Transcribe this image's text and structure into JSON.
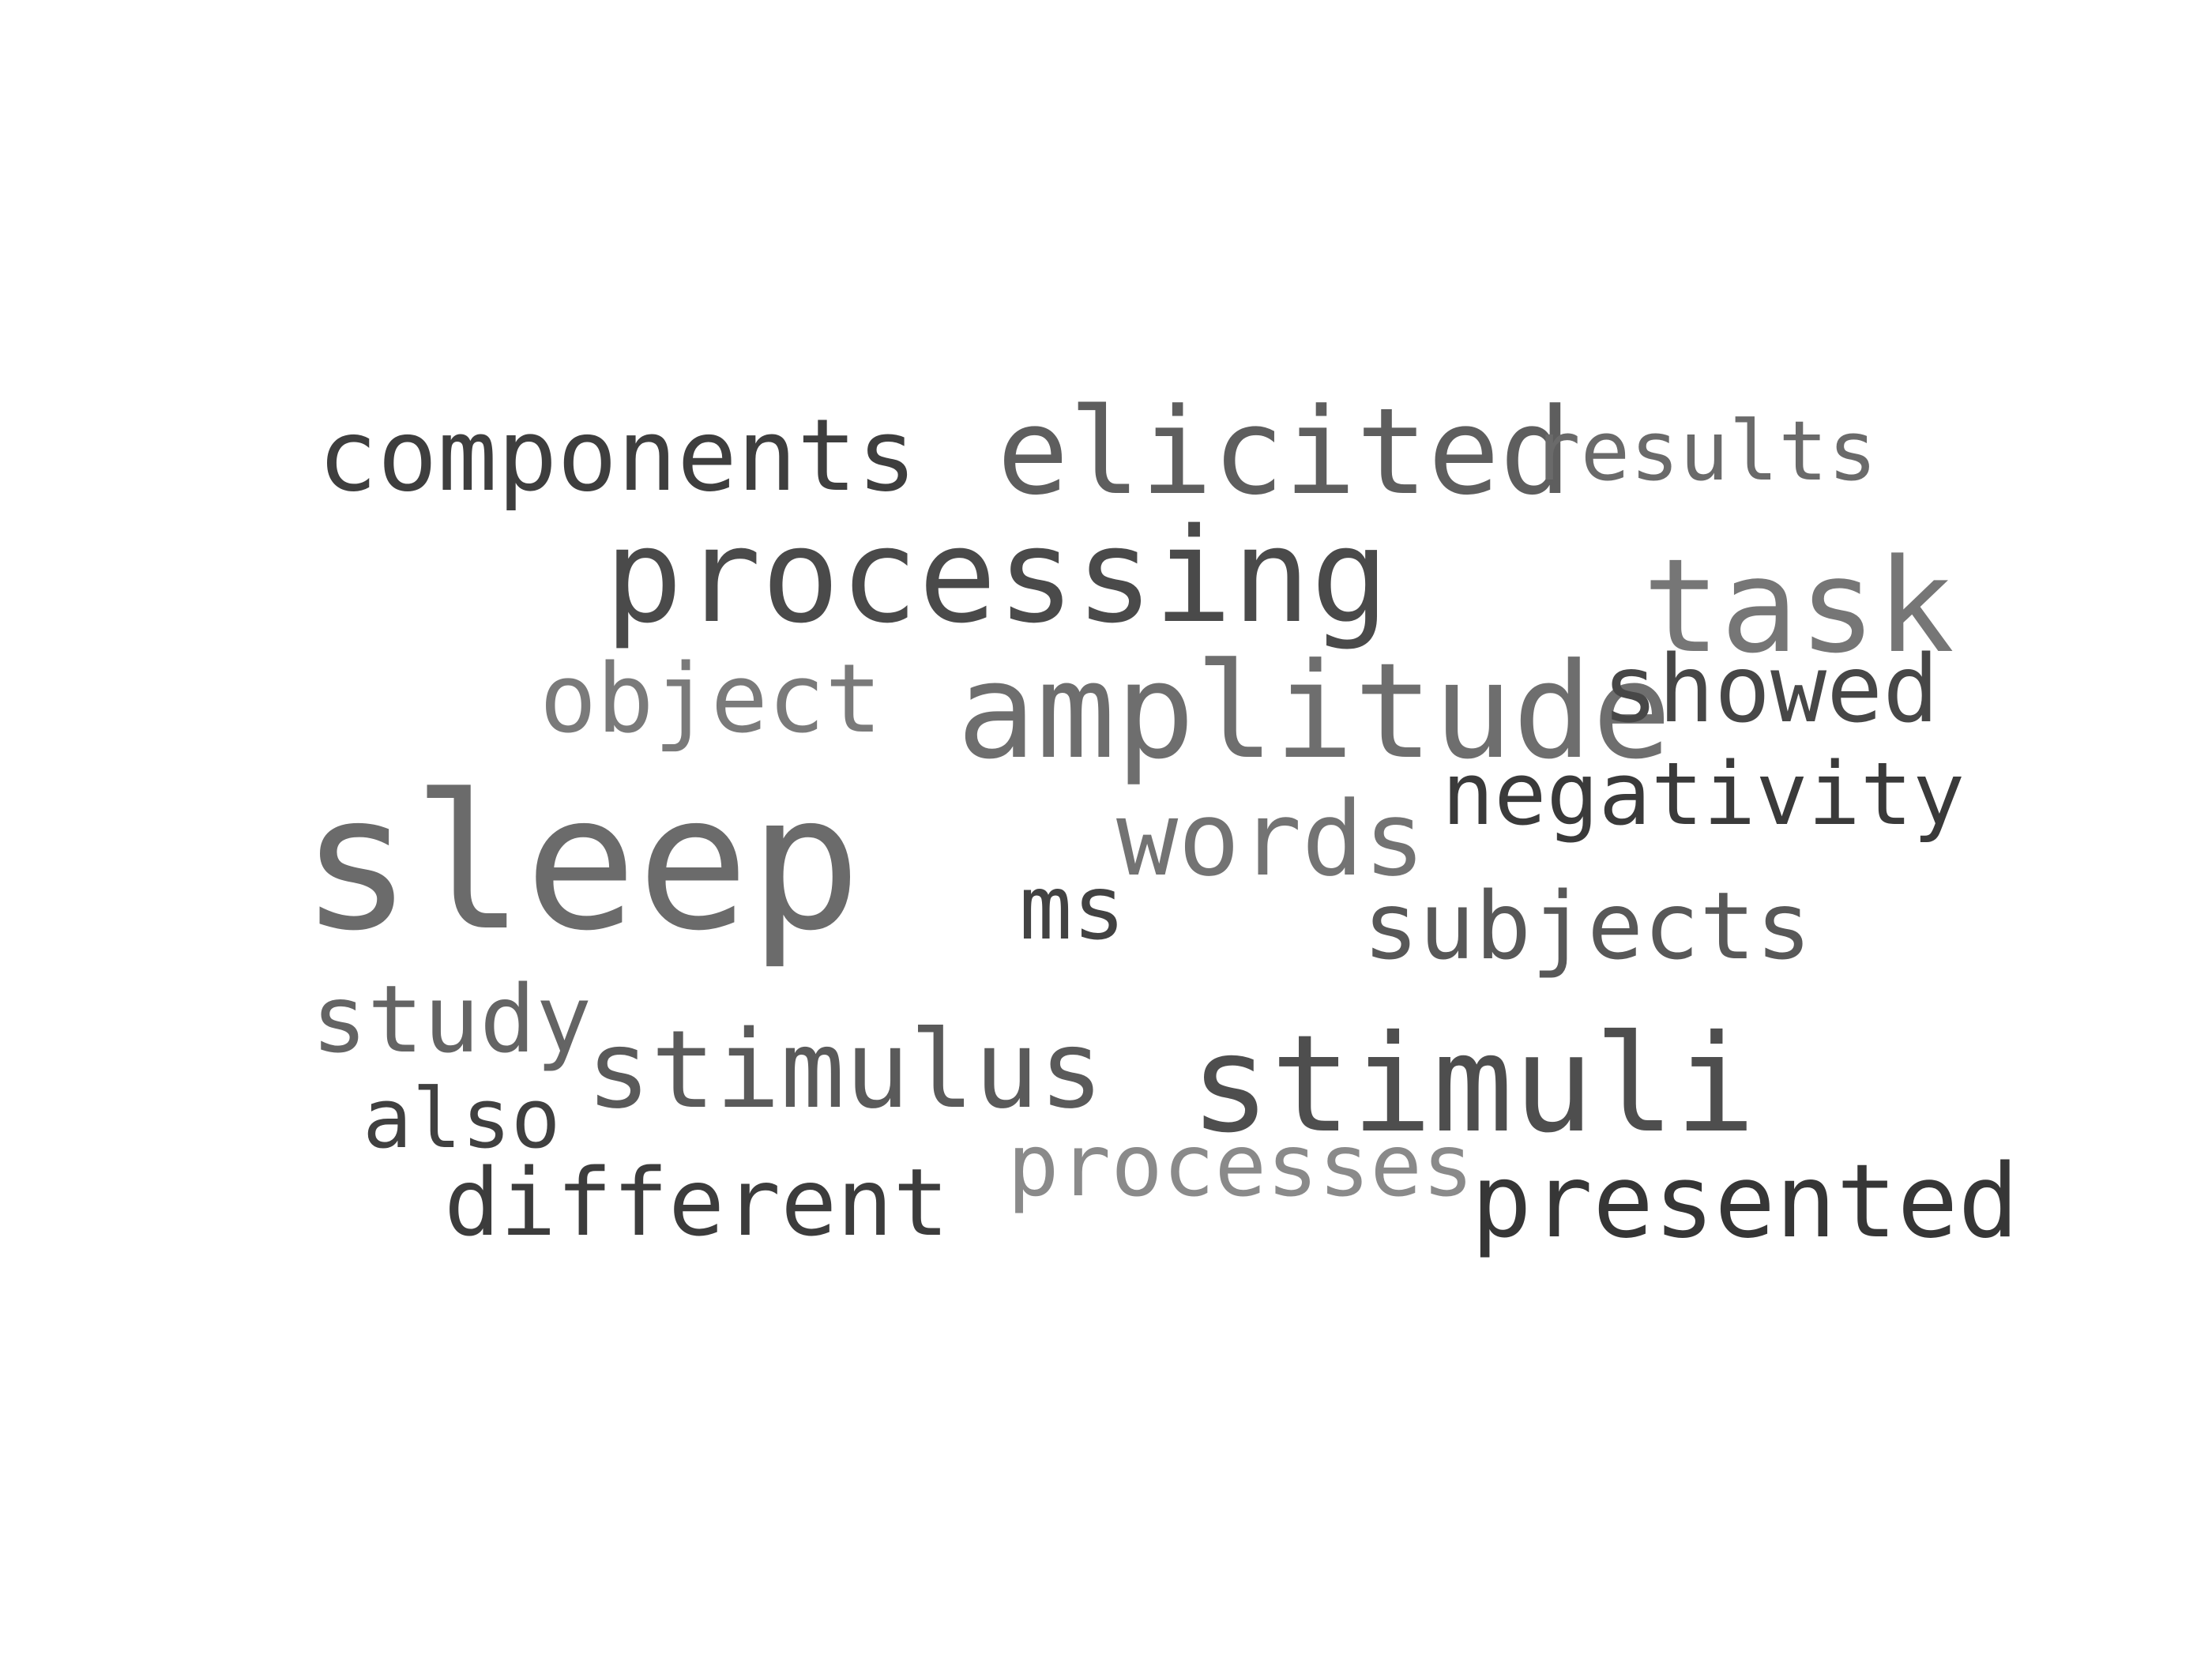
{
  "word_cloud": {
    "words": [
      {
        "key": "components",
        "text": "components",
        "color": "#3e3e3e"
      },
      {
        "key": "elicited",
        "text": "elicited",
        "color": "#5e5e5e"
      },
      {
        "key": "results",
        "text": "results",
        "color": "#6a6a6a"
      },
      {
        "key": "processing",
        "text": "processing",
        "color": "#4a4a4a"
      },
      {
        "key": "task",
        "text": "task",
        "color": "#767676"
      },
      {
        "key": "object",
        "text": "object",
        "color": "#7a7a7a"
      },
      {
        "key": "amplitude",
        "text": "amplitude",
        "color": "#6e6e6e"
      },
      {
        "key": "showed",
        "text": "showed",
        "color": "#474747"
      },
      {
        "key": "negativity",
        "text": "negativity",
        "color": "#3a3a3a"
      },
      {
        "key": "sleep",
        "text": "sleep",
        "color": "#6b6b6b"
      },
      {
        "key": "words",
        "text": "words",
        "color": "#737373"
      },
      {
        "key": "ms",
        "text": "ms",
        "color": "#424242"
      },
      {
        "key": "subjects",
        "text": "subjects",
        "color": "#585858"
      },
      {
        "key": "study",
        "text": "study",
        "color": "#646464"
      },
      {
        "key": "stimulus",
        "text": "stimulus",
        "color": "#5a5a5a"
      },
      {
        "key": "stimuli",
        "text": "stimuli",
        "color": "#4e4e4e"
      },
      {
        "key": "also",
        "text": "also",
        "color": "#404040"
      },
      {
        "key": "processes",
        "text": "processes",
        "color": "#8a8a8a"
      },
      {
        "key": "different",
        "text": "different",
        "color": "#3c3c3c"
      },
      {
        "key": "presented",
        "text": "presented",
        "color": "#363636"
      }
    ]
  }
}
